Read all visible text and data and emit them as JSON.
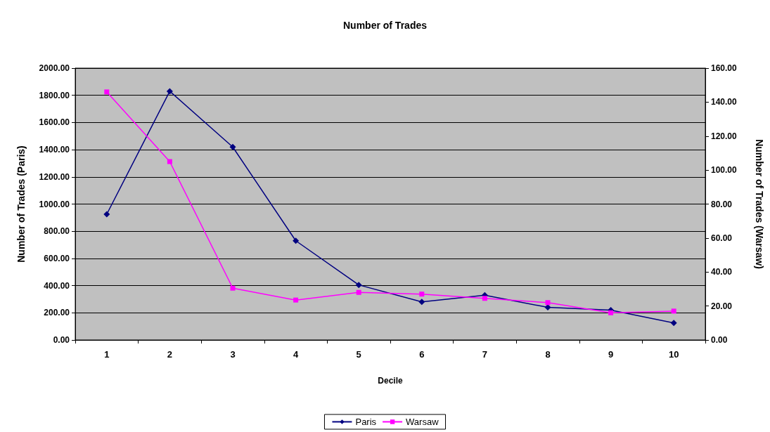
{
  "chart_data": {
    "type": "line",
    "title": "Number of Trades",
    "xlabel": "Decile",
    "ylabel": "Number of Trades (Paris)",
    "y2label": "Number of Trades (Warsaw)",
    "categories": [
      "1",
      "2",
      "3",
      "4",
      "5",
      "6",
      "7",
      "8",
      "9",
      "10"
    ],
    "series": [
      {
        "name": "Paris",
        "color": "#000080",
        "marker": "diamond",
        "values": [
          925,
          1830,
          1420,
          730,
          405,
          280,
          330,
          240,
          220,
          125
        ]
      },
      {
        "name": "Warsaw",
        "color": "#ff00ff",
        "marker": "square",
        "axis": "y2",
        "values": [
          146,
          105,
          30.5,
          23.5,
          28,
          27,
          24.5,
          22,
          16,
          17
        ]
      }
    ],
    "ylim": [
      0,
      2000
    ],
    "yticks": [
      {
        "value": 0,
        "label": "0.00"
      },
      {
        "value": 200,
        "label": "200.00"
      },
      {
        "value": 400,
        "label": "400.00"
      },
      {
        "value": 600,
        "label": "600.00"
      },
      {
        "value": 800,
        "label": "800.00"
      },
      {
        "value": 1000,
        "label": "1000.00"
      },
      {
        "value": 1200,
        "label": "1200.00"
      },
      {
        "value": 1400,
        "label": "1400.00"
      },
      {
        "value": 1600,
        "label": "1600.00"
      },
      {
        "value": 1800,
        "label": "1800.00"
      },
      {
        "value": 2000,
        "label": "2000.00"
      }
    ],
    "y2lim": [
      0,
      160
    ],
    "y2ticks": [
      {
        "value": 0,
        "label": "0.00"
      },
      {
        "value": 20,
        "label": "20.00"
      },
      {
        "value": 40,
        "label": "40.00"
      },
      {
        "value": 60,
        "label": "60.00"
      },
      {
        "value": 80,
        "label": "80.00"
      },
      {
        "value": 100,
        "label": "100.00"
      },
      {
        "value": 120,
        "label": "120.00"
      },
      {
        "value": 140,
        "label": "140.00"
      },
      {
        "value": 160,
        "label": "160.00"
      }
    ],
    "grid": "y",
    "legend": "bottom",
    "line_style": "solid"
  }
}
